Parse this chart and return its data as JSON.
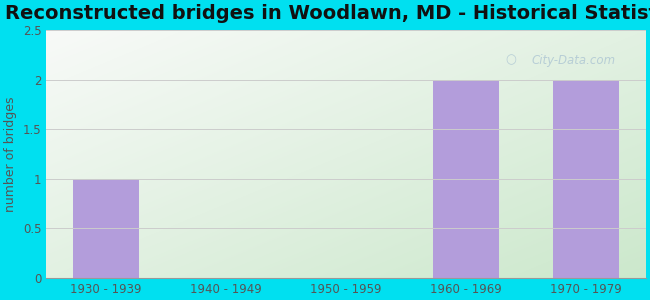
{
  "title": "Reconstructed bridges in Woodlawn, MD - Historical Statistics",
  "categories": [
    "1930 - 1939",
    "1940 - 1949",
    "1950 - 1959",
    "1960 - 1969",
    "1970 - 1979"
  ],
  "values": [
    1,
    0,
    0,
    2,
    2
  ],
  "bar_color": "#b39ddb",
  "ylabel": "number of bridges",
  "ylim": [
    0,
    2.5
  ],
  "yticks": [
    0,
    0.5,
    1,
    1.5,
    2,
    2.5
  ],
  "background_color": "#00e0f0",
  "title_fontsize": 14,
  "axis_label_fontsize": 9,
  "tick_fontsize": 8.5,
  "watermark": "City-Data.com",
  "watermark_color": "#b0c8d4",
  "grid_color": "#cccccc",
  "tick_color": "#555555",
  "bar_width": 0.55
}
